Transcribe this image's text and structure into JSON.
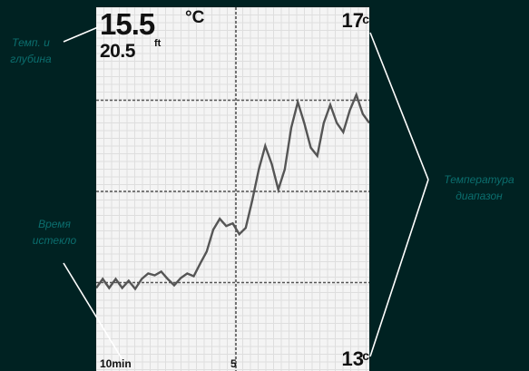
{
  "screen": {
    "temperature": {
      "value": "15.5",
      "unit": "°C"
    },
    "depth": {
      "value": "20.5",
      "unit": "ft"
    },
    "range": {
      "max": "17",
      "min": "13",
      "unit": "c"
    },
    "time_axis": {
      "left": "10min",
      "mid": "5"
    }
  },
  "callouts": {
    "temp_depth": {
      "line1": "Темп. и",
      "line2": "глубина"
    },
    "temp_range": {
      "line1": "Температура",
      "line2": "диапазон"
    },
    "elapsed": {
      "line1": "Время",
      "line2": "истекло"
    }
  },
  "chart_data": {
    "type": "line",
    "title": "",
    "xlabel": "",
    "ylabel": "",
    "x_ticks": [
      "10min",
      "5"
    ],
    "ylim": [
      13,
      17
    ],
    "series": [
      {
        "values": [
          13.94,
          14.04,
          13.94,
          14.04,
          13.94,
          14.02,
          13.93,
          14.04,
          14.1,
          14.08,
          14.12,
          14.04,
          13.97,
          14.05,
          14.1,
          14.07,
          14.21,
          14.34,
          14.58,
          14.7,
          14.62,
          14.65,
          14.53,
          14.6,
          14.9,
          15.24,
          15.5,
          15.3,
          15.02,
          15.24,
          15.7,
          15.98,
          15.75,
          15.48,
          15.39,
          15.75,
          15.95,
          15.75,
          15.65,
          15.89,
          16.06,
          15.85,
          15.75
        ]
      }
    ],
    "grid": true
  },
  "colors": {
    "background": "#002222",
    "screen": "#f4f4f4",
    "trace": "#555555",
    "callout": "#0b6e6e"
  }
}
